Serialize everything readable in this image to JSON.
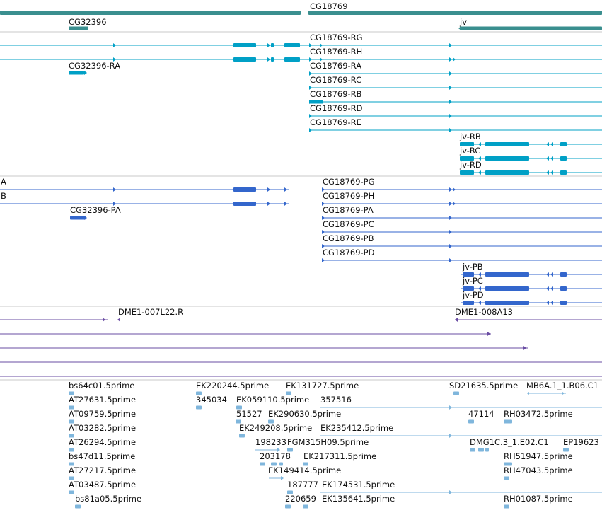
{
  "colors": {
    "gene": "#3a8f8f",
    "transcript": "#00a0c6",
    "protein": "#3366cc",
    "clone": "#6a4ca3",
    "est": "#7fb6dc",
    "divider": "#c8c8c8"
  },
  "tracks": [
    {
      "id": "gene",
      "color_key": "gene",
      "labels": [
        {
          "id": "CG18769",
          "text": "CG18769"
        },
        {
          "id": "CG32396",
          "text": "CG32396"
        },
        {
          "id": "jv",
          "text": "jv"
        }
      ]
    },
    {
      "id": "transcript",
      "color_key": "transcript",
      "labels": [
        {
          "id": "CG18769-RG",
          "text": "CG18769-RG"
        },
        {
          "id": "CG18769-RH",
          "text": "CG18769-RH"
        },
        {
          "id": "CG32396-RA",
          "text": "CG32396-RA"
        },
        {
          "id": "CG18769-RA",
          "text": "CG18769-RA"
        },
        {
          "id": "CG18769-RC",
          "text": "CG18769-RC"
        },
        {
          "id": "CG18769-RB",
          "text": "CG18769-RB"
        },
        {
          "id": "CG18769-RD",
          "text": "CG18769-RD"
        },
        {
          "id": "CG18769-RE",
          "text": "CG18769-RE"
        },
        {
          "id": "jv-RB",
          "text": "jv-RB"
        },
        {
          "id": "jv-RC",
          "text": "jv-RC"
        },
        {
          "id": "jv-RD",
          "text": "jv-RD"
        }
      ]
    },
    {
      "id": "protein",
      "color_key": "protein",
      "labels": [
        {
          "id": "A",
          "text": "A"
        },
        {
          "id": "B",
          "text": "B"
        },
        {
          "id": "CG32396-PA",
          "text": "CG32396-PA"
        },
        {
          "id": "CG18769-PG",
          "text": "CG18769-PG"
        },
        {
          "id": "CG18769-PH",
          "text": "CG18769-PH"
        },
        {
          "id": "CG18769-PA",
          "text": "CG18769-PA"
        },
        {
          "id": "CG18769-PC",
          "text": "CG18769-PC"
        },
        {
          "id": "CG18769-PB",
          "text": "CG18769-PB"
        },
        {
          "id": "CG18769-PD",
          "text": "CG18769-PD"
        },
        {
          "id": "jv-PB",
          "text": "jv-PB"
        },
        {
          "id": "jv-PC",
          "text": "jv-PC"
        },
        {
          "id": "jv-PD",
          "text": "jv-PD"
        }
      ]
    },
    {
      "id": "clone",
      "color_key": "clone",
      "labels": [
        {
          "id": "DME1-007L22.R",
          "text": "DME1-007L22.R"
        },
        {
          "id": "DME1-008A13",
          "text": "DME1-008A13"
        }
      ]
    },
    {
      "id": "est",
      "color_key": "est",
      "labels": [
        {
          "id": "bs64c01.5prime",
          "text": "bs64c01.5prime"
        },
        {
          "id": "EK220244.5prime",
          "text": "EK220244.5prime"
        },
        {
          "id": "EK131727.5prime",
          "text": "EK131727.5prime"
        },
        {
          "id": "SD21635.5prime",
          "text": "SD21635.5prime"
        },
        {
          "id": "MB6A.1_1.B06.C1",
          "text": "MB6A.1_1.B06.C1"
        },
        {
          "id": "AT27631.5prime",
          "text": "AT27631.5prime"
        },
        {
          "id": "345034",
          "text": "345034"
        },
        {
          "id": "EK059110.5prime",
          "text": "EK059110.5prime"
        },
        {
          "id": "357516",
          "text": "357516"
        },
        {
          "id": "AT09759.5prime",
          "text": "AT09759.5prime"
        },
        {
          "id": "51527",
          "text": "51527"
        },
        {
          "id": "EK290630.5prime",
          "text": "EK290630.5prime"
        },
        {
          "id": "47114",
          "text": "47114"
        },
        {
          "id": "RH03472.5prime",
          "text": "RH03472.5prime"
        },
        {
          "id": "AT03282.5prime",
          "text": "AT03282.5prime"
        },
        {
          "id": "EK249208.5prime",
          "text": "EK249208.5prime"
        },
        {
          "id": "EK235412.5prime",
          "text": "EK235412.5prime"
        },
        {
          "id": "AT26294.5prime",
          "text": "AT26294.5prime"
        },
        {
          "id": "198233",
          "text": "198233"
        },
        {
          "id": "FGM315H09.5prime",
          "text": "FGM315H09.5prime"
        },
        {
          "id": "DMG1C.3_1.E02.C1",
          "text": "DMG1C.3_1.E02.C1"
        },
        {
          "id": "EP19623",
          "text": "EP19623"
        },
        {
          "id": "bs47d11.5prime",
          "text": "bs47d11.5prime"
        },
        {
          "id": "203178",
          "text": "203178"
        },
        {
          "id": "EK217311.5prime",
          "text": "EK217311.5prime"
        },
        {
          "id": "RH51947.5prime",
          "text": "RH51947.5prime"
        },
        {
          "id": "AT27217.5prime",
          "text": "AT27217.5prime"
        },
        {
          "id": "EK149414.5prime",
          "text": "EK149414.5prime"
        },
        {
          "id": "RH47043.5prime",
          "text": "RH47043.5prime"
        },
        {
          "id": "AT03487.5prime",
          "text": "AT03487.5prime"
        },
        {
          "id": "187777",
          "text": "187777"
        },
        {
          "id": "EK174531.5prime",
          "text": "EK174531.5prime"
        },
        {
          "id": "bs81a05.5prime",
          "text": "bs81a05.5prime"
        },
        {
          "id": "220659",
          "text": "220659"
        },
        {
          "id": "EK135641.5prime",
          "text": "EK135641.5prime"
        },
        {
          "id": "RH01087.5prime",
          "text": "RH01087.5prime"
        }
      ]
    }
  ]
}
